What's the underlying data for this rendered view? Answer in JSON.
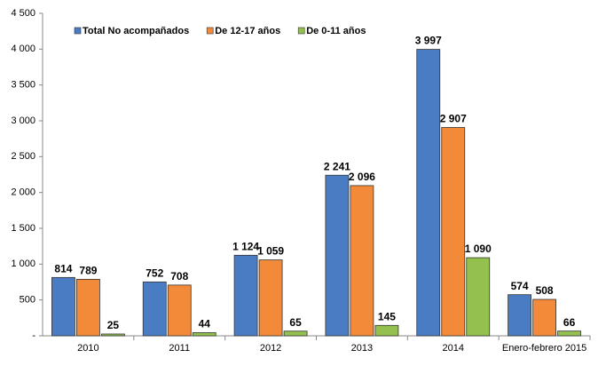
{
  "chart_data": {
    "type": "bar",
    "categories": [
      "2010",
      "2011",
      "2012",
      "2013",
      "2014",
      "Enero-febrero 2015"
    ],
    "series": [
      {
        "name": "Total No acompañados",
        "color": "#4a7cc4",
        "values": [
          814,
          752,
          1124,
          2241,
          3997,
          574
        ],
        "value_labels": [
          "814",
          "752",
          "1 124",
          "2 241",
          "3 997",
          "574"
        ]
      },
      {
        "name": "De 12-17 años",
        "color": "#f28a3a",
        "values": [
          789,
          708,
          1059,
          2096,
          2907,
          508
        ],
        "value_labels": [
          "789",
          "708",
          "1 059",
          "2 096",
          "2 907",
          "508"
        ]
      },
      {
        "name": "De 0-11 años",
        "color": "#94c04e",
        "values": [
          25,
          44,
          65,
          145,
          1090,
          66
        ],
        "value_labels": [
          "25",
          "44",
          "65",
          "145",
          "1 090",
          "66"
        ]
      }
    ],
    "ylim": [
      0,
      4500
    ],
    "yticks": [
      {
        "value": 0,
        "label": "-"
      },
      500,
      {
        "value": 1000,
        "label": "1 000"
      },
      {
        "value": 1500,
        "label": "1 500"
      },
      {
        "value": 2000,
        "label": "2 000"
      },
      {
        "value": 2500,
        "label": "2 500"
      },
      {
        "value": 3000,
        "label": "3 000"
      },
      {
        "value": 3500,
        "label": "3 500"
      },
      {
        "value": 4000,
        "label": "4 000"
      },
      {
        "value": 4500,
        "label": "4 500"
      }
    ],
    "grid": false,
    "legend": "top-left"
  }
}
